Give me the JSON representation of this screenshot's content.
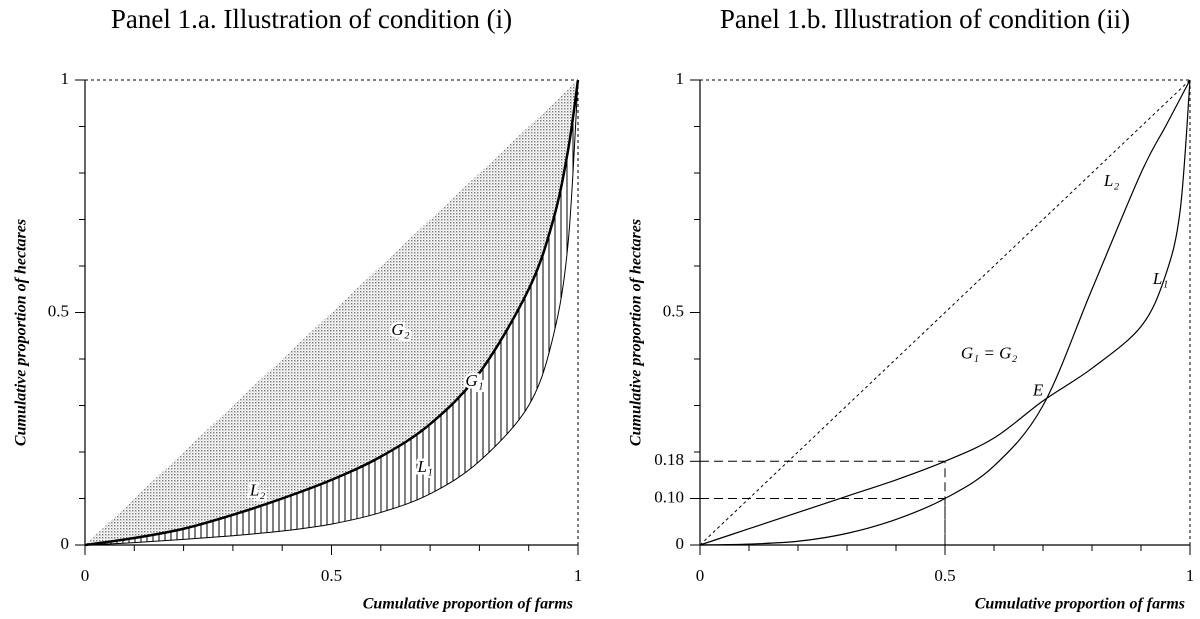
{
  "chart_data": [
    {
      "type": "line",
      "title": "Panel 1.a. Illustration of condition (i)",
      "xlabel": "Cumulative proportion of farms",
      "ylabel": "Cumulative proportion of hectares",
      "xlim": [
        0,
        1
      ],
      "ylim": [
        0,
        1
      ],
      "xticks": [
        0,
        0.5,
        1
      ],
      "yticks": [
        0,
        0.5,
        1
      ],
      "xminor_ticks": [
        0.1,
        0.2,
        0.3,
        0.4,
        0.6,
        0.7,
        0.8,
        0.9
      ],
      "yminor_ticks": [
        0.1,
        0.2,
        0.3,
        0.4,
        0.6,
        0.7,
        0.8,
        0.9
      ],
      "shaded": true,
      "equality_line": false,
      "series": [
        {
          "name": "L₁",
          "color": "#000000",
          "linewidth": 1,
          "x": [
            0,
            0.1,
            0.2,
            0.3,
            0.4,
            0.5,
            0.6,
            0.7,
            0.8,
            0.9,
            0.95,
            0.98,
            1
          ],
          "values": [
            0,
            0.005,
            0.012,
            0.02,
            0.03,
            0.045,
            0.07,
            0.11,
            0.18,
            0.3,
            0.45,
            0.65,
            1
          ]
        },
        {
          "name": "L₂",
          "color": "#000000",
          "linewidth": 2.5,
          "x": [
            0,
            0.1,
            0.2,
            0.3,
            0.4,
            0.5,
            0.6,
            0.7,
            0.8,
            0.9,
            0.95,
            0.98,
            1
          ],
          "values": [
            0,
            0.015,
            0.035,
            0.065,
            0.1,
            0.14,
            0.19,
            0.26,
            0.37,
            0.55,
            0.7,
            0.85,
            1
          ]
        }
      ],
      "annotations": [
        "G₂",
        "G₁"
      ]
    },
    {
      "type": "line",
      "title": "Panel 1.b. Illustration of condition (ii)",
      "xlabel": "Cumulative proportion of farms",
      "ylabel": "Cumulative proportion of hectares",
      "xlim": [
        0,
        1
      ],
      "ylim": [
        0,
        1
      ],
      "xticks": [
        0,
        0.5,
        1
      ],
      "yticks": [
        0,
        {
          "value": 0.1,
          "label": "0.10"
        },
        0.18,
        0.5,
        1
      ],
      "xminor_ticks": [
        0.1,
        0.2,
        0.3,
        0.4,
        0.6,
        0.7,
        0.8,
        0.9
      ],
      "yminor_ticks": [
        0.2,
        0.3,
        0.4,
        0.6,
        0.7,
        0.8,
        0.9
      ],
      "shaded": false,
      "equality_line": true,
      "guides": [
        {
          "x": 0.5,
          "y": 0.18
        },
        {
          "x": 0.5,
          "y": 0.1
        }
      ],
      "series": [
        {
          "name": "L₁",
          "color": "#000000",
          "linewidth": 1.2,
          "x": [
            0,
            0.1,
            0.2,
            0.3,
            0.4,
            0.5,
            0.6,
            0.7,
            0.8,
            0.9,
            0.95,
            0.98,
            1
          ],
          "values": [
            0,
            0.035,
            0.07,
            0.105,
            0.14,
            0.18,
            0.23,
            0.31,
            0.38,
            0.47,
            0.58,
            0.72,
            1
          ]
        },
        {
          "name": "L₂",
          "color": "#000000",
          "linewidth": 1.2,
          "x": [
            0,
            0.1,
            0.2,
            0.3,
            0.4,
            0.5,
            0.6,
            0.7,
            0.8,
            0.9,
            0.95,
            0.98,
            1
          ],
          "values": [
            0,
            0.002,
            0.008,
            0.025,
            0.055,
            0.1,
            0.17,
            0.3,
            0.55,
            0.8,
            0.9,
            0.96,
            1
          ]
        }
      ],
      "annotations": [
        "G₁ = G₂",
        "E"
      ]
    }
  ]
}
